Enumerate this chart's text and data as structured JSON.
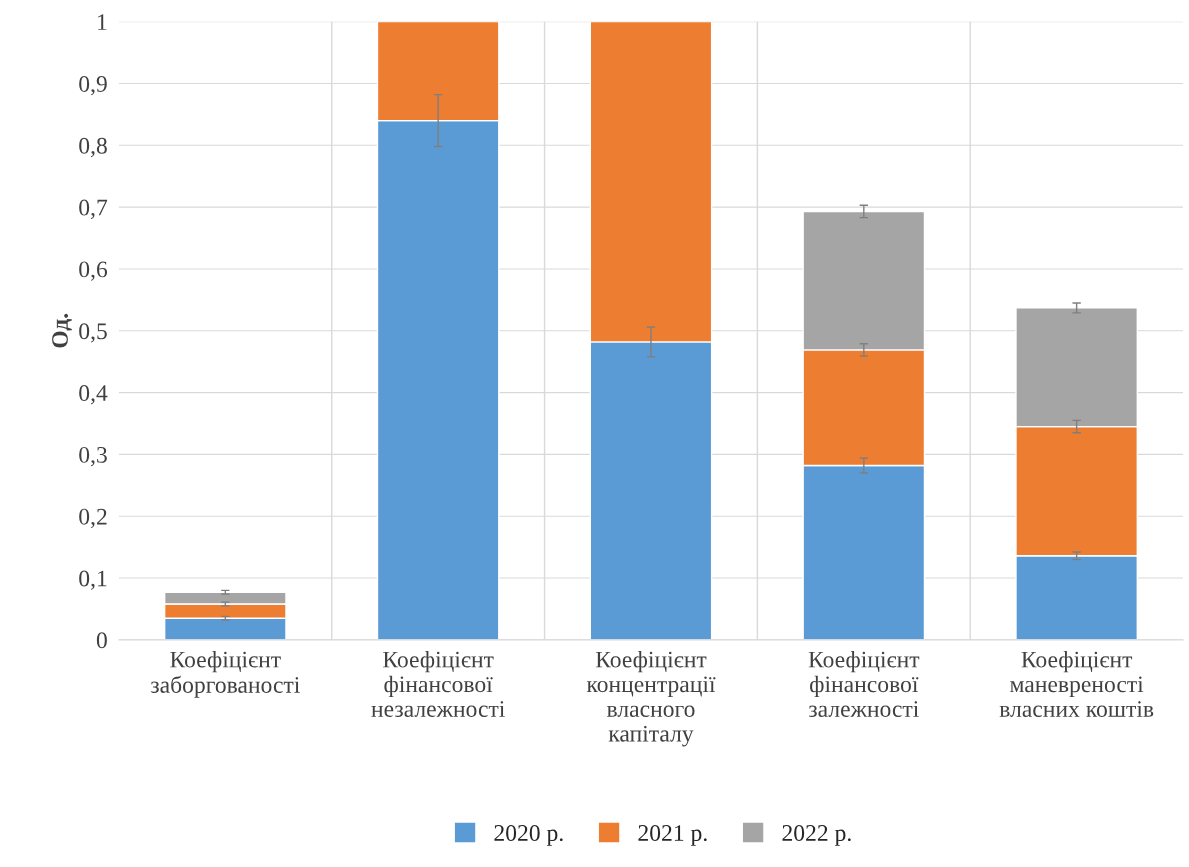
{
  "chart_data": {
    "type": "bar",
    "stacked": true,
    "ylabel": "Од.",
    "categories": [
      "Коефіцієнт\nзаборгованості",
      "Коефіцієнт\nфінансової\nнезалежності",
      "Коефіцієнт\nконцентрації\nвласного\nкапіталу",
      "Коефіцієнт\nфінансової\nзалежності",
      "Коефіцієнт\nманевреності\nвласних коштів"
    ],
    "series": [
      {
        "name": "2020 р.",
        "color": "#5b9bd5",
        "values": [
          0.035,
          0.84,
          0.482,
          0.282,
          0.136
        ],
        "errors": [
          0.003,
          0.042,
          0.024,
          0.012,
          0.006
        ]
      },
      {
        "name": "2021 р.",
        "color": "#ed7d31",
        "values": [
          0.023,
          0.16,
          0.518,
          0.187,
          0.209
        ],
        "errors": [
          0.003,
          null,
          null,
          0.01,
          0.01
        ]
      },
      {
        "name": "2022 р.",
        "color": "#a5a5a5",
        "values": [
          0.019,
          null,
          null,
          0.224,
          0.192
        ],
        "errors": [
          0.003,
          null,
          null,
          0.01,
          0.008
        ]
      }
    ],
    "ylim": [
      0,
      1
    ],
    "yticks": [
      0,
      {
        "value": 0.1,
        "label": "0,1"
      },
      {
        "value": 0.2,
        "label": "0,2"
      },
      {
        "value": 0.3,
        "label": "0,3"
      },
      {
        "value": 0.4,
        "label": "0,4"
      },
      {
        "value": 0.5,
        "label": "0,5"
      },
      {
        "value": 0.6,
        "label": "0,6"
      },
      {
        "value": 0.7,
        "label": "0,7"
      },
      {
        "value": 0.8,
        "label": "0,8"
      },
      {
        "value": 0.9,
        "label": "0,9"
      },
      1
    ],
    "grid": true,
    "legend": "bottom"
  }
}
